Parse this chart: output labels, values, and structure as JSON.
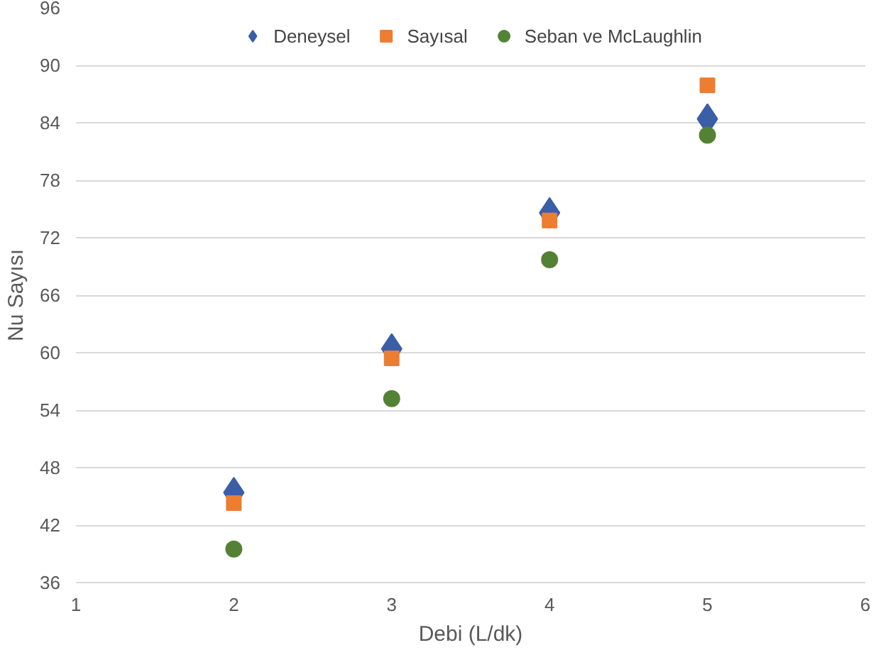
{
  "chart_data": {
    "type": "scatter",
    "xlabel": "Debi (L/dk)",
    "ylabel": "Nu Sayısı",
    "x": [
      2,
      3,
      4,
      5
    ],
    "series": [
      {
        "name": "Deneysel",
        "color": "#3a5fa8",
        "marker": "diamond",
        "values": [
          45.4,
          60.4,
          74.6,
          84.4
        ]
      },
      {
        "name": "Sayısal",
        "color": "#ed7d31",
        "marker": "square",
        "values": [
          44.3,
          59.4,
          73.8,
          87.9
        ]
      },
      {
        "name": "Seban ve McLaughlin",
        "color": "#548235",
        "marker": "circle",
        "values": [
          39.5,
          55.2,
          69.7,
          82.7
        ]
      }
    ],
    "xlim": [
      1,
      6
    ],
    "xticks": [
      1,
      2,
      3,
      4,
      5,
      6
    ],
    "ylim": [
      36,
      96
    ],
    "yticks": [
      36,
      42,
      48,
      54,
      60,
      66,
      72,
      78,
      84,
      90,
      96
    ],
    "grid": "y",
    "legend": "top"
  }
}
